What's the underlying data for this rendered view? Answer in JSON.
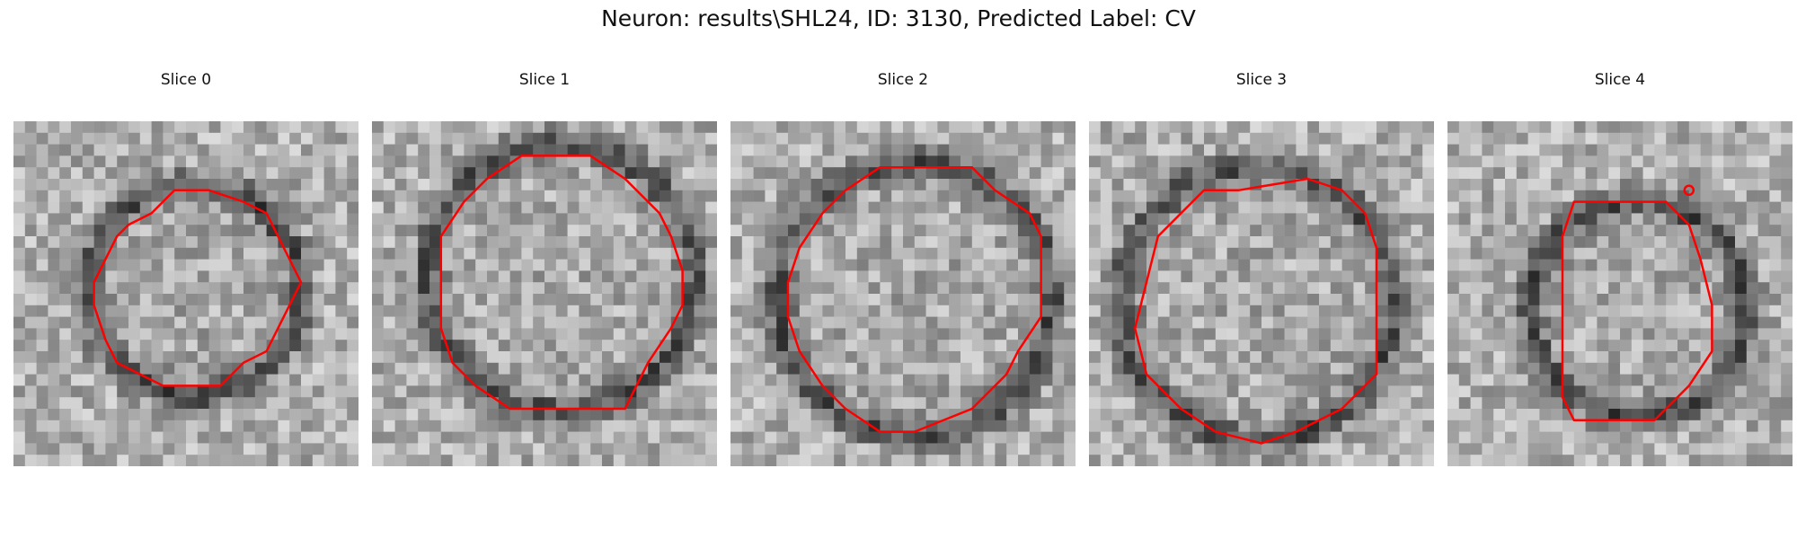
{
  "figure": {
    "title": "Neuron: results\\SHL24, ID: 3130, Predicted Label: CV"
  },
  "colors": {
    "contour": "#ff0000"
  },
  "panels": [
    {
      "label": "Slice 0",
      "grid_size": 30,
      "contour": [
        [
          14,
          6
        ],
        [
          17,
          6
        ],
        [
          20,
          7
        ],
        [
          22,
          8
        ],
        [
          23,
          10
        ],
        [
          24,
          12
        ],
        [
          25,
          14
        ],
        [
          24,
          16
        ],
        [
          23,
          18
        ],
        [
          22,
          20
        ],
        [
          20,
          21
        ],
        [
          18,
          23
        ],
        [
          15,
          23
        ],
        [
          13,
          23
        ],
        [
          11,
          22
        ],
        [
          9,
          21
        ],
        [
          8,
          19
        ],
        [
          7,
          16
        ],
        [
          7,
          14
        ],
        [
          8,
          12
        ],
        [
          9,
          10
        ],
        [
          10,
          9
        ],
        [
          12,
          8
        ]
      ]
    },
    {
      "label": "Slice 1",
      "grid_size": 30,
      "contour": [
        [
          13,
          3
        ],
        [
          19,
          3
        ],
        [
          22,
          5
        ],
        [
          25,
          8
        ],
        [
          26,
          10
        ],
        [
          27,
          13
        ],
        [
          27,
          16
        ],
        [
          26,
          18
        ],
        [
          24,
          21
        ],
        [
          22,
          25
        ],
        [
          12,
          25
        ],
        [
          9,
          23
        ],
        [
          7,
          21
        ],
        [
          6,
          18
        ],
        [
          6,
          14
        ],
        [
          6,
          10
        ],
        [
          8,
          7
        ],
        [
          10,
          5
        ]
      ]
    },
    {
      "label": "Slice 2",
      "grid_size": 30,
      "contour": [
        [
          13,
          4
        ],
        [
          21,
          4
        ],
        [
          23,
          6
        ],
        [
          26,
          8
        ],
        [
          27,
          10
        ],
        [
          27,
          14
        ],
        [
          27,
          17
        ],
        [
          25,
          20
        ],
        [
          24,
          22
        ],
        [
          21,
          25
        ],
        [
          16,
          27
        ],
        [
          13,
          27
        ],
        [
          10,
          25
        ],
        [
          8,
          23
        ],
        [
          6,
          20
        ],
        [
          5,
          17
        ],
        [
          5,
          14
        ],
        [
          6,
          11
        ],
        [
          8,
          8
        ],
        [
          10,
          6
        ]
      ]
    },
    {
      "label": "Slice 3",
      "grid_size": 30,
      "contour": [
        [
          13,
          6
        ],
        [
          19,
          5
        ],
        [
          22,
          6
        ],
        [
          24,
          8
        ],
        [
          25,
          11
        ],
        [
          25,
          17
        ],
        [
          25,
          22
        ],
        [
          22,
          25
        ],
        [
          18,
          27
        ],
        [
          15,
          28
        ],
        [
          11,
          27
        ],
        [
          8,
          25
        ],
        [
          5,
          22
        ],
        [
          4,
          18
        ],
        [
          5,
          14
        ],
        [
          6,
          10
        ],
        [
          8,
          8
        ],
        [
          10,
          6
        ]
      ]
    },
    {
      "label": "Slice 4",
      "grid_size": 30,
      "contour": [
        [
          11,
          7
        ],
        [
          19,
          7
        ],
        [
          21,
          9
        ],
        [
          22,
          12
        ],
        [
          23,
          16
        ],
        [
          23,
          20
        ],
        [
          21,
          23
        ],
        [
          18,
          26
        ],
        [
          11,
          26
        ],
        [
          10,
          24
        ],
        [
          10,
          16
        ],
        [
          10,
          10
        ]
      ],
      "marker": [
        21,
        6
      ]
    }
  ]
}
